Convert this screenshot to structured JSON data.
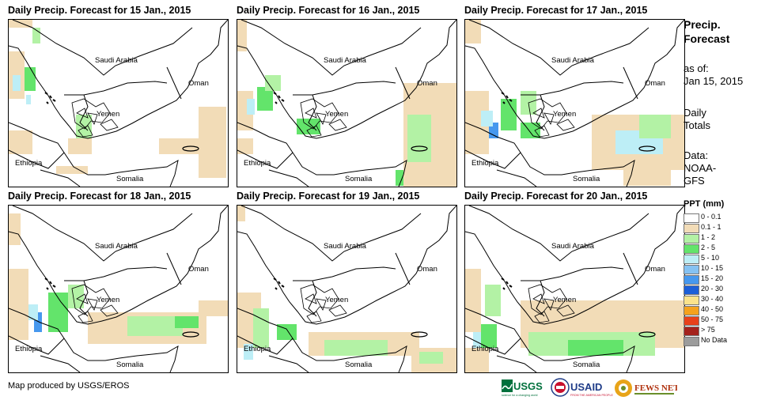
{
  "panels": [
    {
      "title": "Daily Precip. Forecast for 15 Jan., 2015"
    },
    {
      "title": "Daily Precip. Forecast for 16 Jan., 2015"
    },
    {
      "title": "Daily Precip. Forecast for 17 Jan., 2015"
    },
    {
      "title": "Daily Precip. Forecast for 18 Jan., 2015"
    },
    {
      "title": "Daily Precip. Forecast for 19 Jan., 2015"
    },
    {
      "title": "Daily Precip. Forecast for 20 Jan., 2015"
    }
  ],
  "map_labels": {
    "saudi": "Saudi Arabia",
    "oman": "Oman",
    "yemen": "Yemen",
    "ethiopia": "Ethiopia",
    "somalia": "Somalia"
  },
  "side": {
    "title_line1": "Precip.",
    "title_line2": "Forecast",
    "asof_line1": "as of:",
    "asof_line2": "Jan 15, 2015",
    "daily_line1": "Daily",
    "daily_line2": "Totals",
    "data_line1": "Data:",
    "data_line2": "NOAA-",
    "data_line3": "GFS"
  },
  "legend": {
    "title": "PPT (mm)",
    "items": [
      {
        "label": "0 - 0.1",
        "color": "#ffffff"
      },
      {
        "label": "0.1 - 1",
        "color": "#f2dcb7"
      },
      {
        "label": "1 - 2",
        "color": "#b3f2a5"
      },
      {
        "label": "2 - 5",
        "color": "#63e46b"
      },
      {
        "label": "5 - 10",
        "color": "#bdeef6"
      },
      {
        "label": "10 - 15",
        "color": "#85c2f2"
      },
      {
        "label": "15 - 20",
        "color": "#4698ee"
      },
      {
        "label": "20 - 30",
        "color": "#1c5fd8"
      },
      {
        "label": "30 - 40",
        "color": "#fbe38b"
      },
      {
        "label": "40 - 50",
        "color": "#f5a21d"
      },
      {
        "label": "50 - 75",
        "color": "#e8411a"
      },
      {
        "label": "> 75",
        "color": "#a4221c"
      },
      {
        "label": "No Data",
        "color": "#9c9c9c"
      }
    ]
  },
  "credit": "Map produced by USGS/EROS",
  "logos": {
    "usgs": "USGS",
    "usgs_tag": "science for a changing world",
    "usaid": "USAID",
    "usaid_tag": "FROM THE AMERICAN PEOPLE",
    "fews": "FEWS NET"
  }
}
